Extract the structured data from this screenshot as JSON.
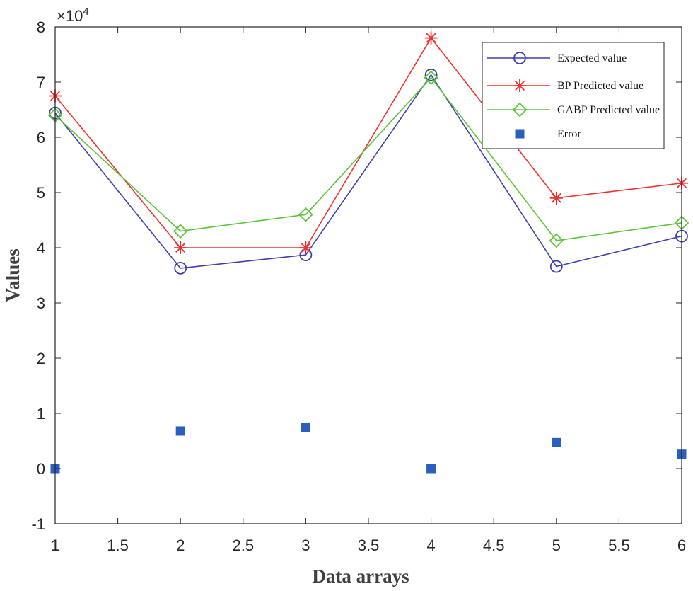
{
  "chart_data": {
    "type": "line",
    "title": "",
    "xlabel": "Data arrays",
    "ylabel": "Values",
    "y_exponent_label": "×10",
    "y_exponent_power": "4",
    "xlim": [
      1,
      6
    ],
    "ylim": [
      -1,
      8
    ],
    "x_ticks": [
      1,
      1.5,
      2,
      2.5,
      3,
      3.5,
      4,
      4.5,
      5,
      5.5,
      6
    ],
    "x_tick_labels": [
      "1",
      "1.5",
      "2",
      "2.5",
      "3",
      "3.5",
      "4",
      "4.5",
      "5",
      "5.5",
      "6"
    ],
    "y_ticks": [
      -1,
      0,
      1,
      2,
      3,
      4,
      5,
      6,
      7,
      8
    ],
    "y_tick_labels": [
      "-1",
      "0",
      "1",
      "2",
      "3",
      "4",
      "5",
      "6",
      "7",
      "8"
    ],
    "x": [
      1,
      2,
      3,
      4,
      5,
      6
    ],
    "series": [
      {
        "name": "Expected value",
        "color": "#3f3fa8",
        "marker": "circle",
        "values": [
          6.44,
          3.63,
          3.87,
          7.13,
          3.66,
          4.21
        ]
      },
      {
        "name": "BP Predicted value",
        "color": "#f03030",
        "marker": "asterisk",
        "values": [
          6.75,
          4.0,
          4.0,
          7.8,
          4.9,
          5.17
        ]
      },
      {
        "name": "GABP Predicted value",
        "color": "#5ec43a",
        "marker": "diamond",
        "values": [
          6.4,
          4.3,
          4.6,
          7.08,
          4.13,
          4.45
        ]
      },
      {
        "name": "Error",
        "color": "#2a5fbd",
        "marker": "square",
        "line": false,
        "values": [
          0.0,
          0.68,
          0.75,
          0.0,
          0.47,
          0.26
        ]
      }
    ],
    "legend_position": "top-right",
    "grid": false
  }
}
